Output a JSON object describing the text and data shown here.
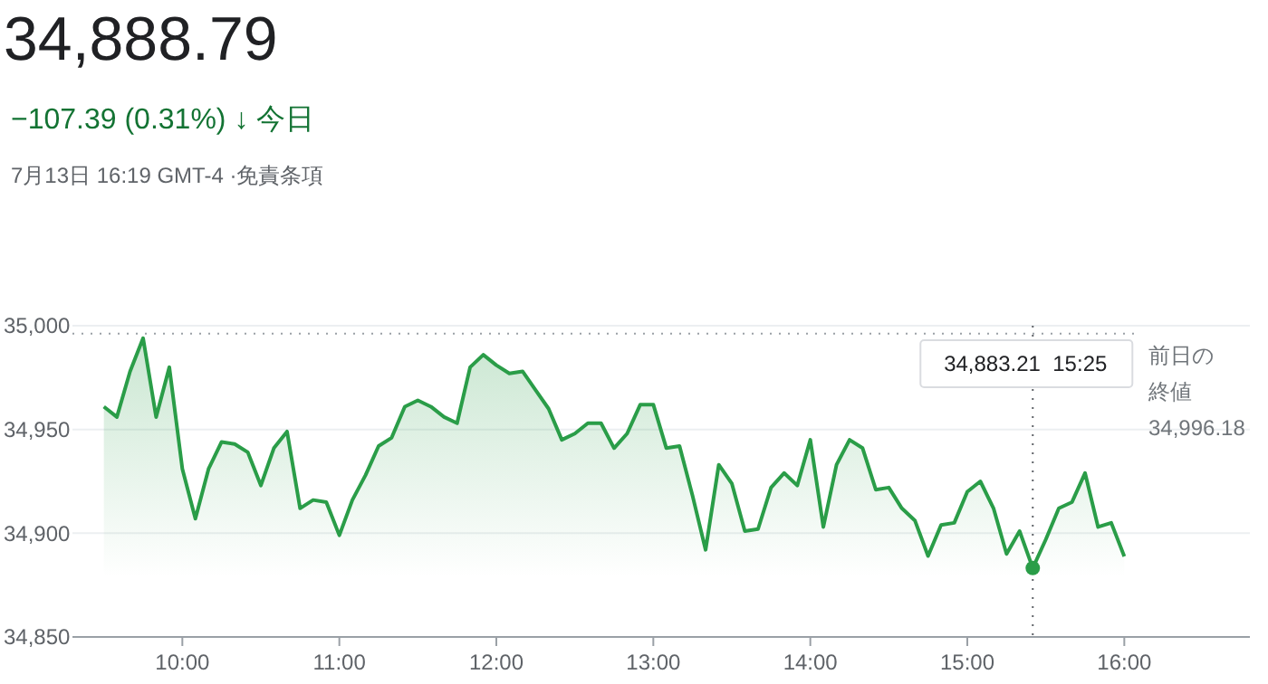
{
  "chart_data": {
    "type": "area",
    "title": "34,888.79",
    "subtitle": "−107.39 (0.31%) ↓ 今日",
    "annotations": [
      "7月13日 16:19 GMT-4 ·免責条項",
      "34,883.21  15:25",
      "34,996.18"
    ],
    "x": [
      9.5,
      9.583,
      9.667,
      9.75,
      9.833,
      9.917,
      10,
      10.083,
      10.167,
      10.25,
      10.333,
      10.417,
      10.5,
      10.583,
      10.667,
      10.75,
      10.833,
      10.917,
      11,
      11.083,
      11.167,
      11.25,
      11.333,
      11.417,
      11.5,
      11.583,
      11.667,
      11.75,
      11.833,
      11.917,
      12,
      12.083,
      12.167,
      12.25,
      12.333,
      12.417,
      12.5,
      12.583,
      12.667,
      12.75,
      12.833,
      12.917,
      13,
      13.083,
      13.167,
      13.25,
      13.333,
      13.417,
      13.5,
      13.583,
      13.667,
      13.75,
      13.833,
      13.917,
      14,
      14.083,
      14.167,
      14.25,
      14.333,
      14.417,
      14.5,
      14.583,
      14.667,
      14.75,
      14.833,
      14.917,
      15,
      15.083,
      15.167,
      15.25,
      15.333,
      15.417,
      15.5,
      15.583,
      15.667,
      15.75,
      15.833,
      15.917,
      16
    ],
    "series": [
      {
        "color": "#2a9d48",
        "values": [
          34961,
          34956,
          34978,
          34994,
          34956,
          34980,
          34931,
          34907,
          34931,
          34944,
          34943,
          34939,
          34923,
          34941,
          34949,
          34912,
          34916,
          34915,
          34899,
          34916,
          34928,
          34942,
          34946,
          34961,
          34964,
          34961,
          34956,
          34953,
          34980,
          34986,
          34981,
          34977,
          34978,
          34969,
          34960,
          34945,
          34948,
          34953,
          34953,
          34941,
          34948,
          34962,
          34962,
          34941,
          34942,
          34918,
          34892,
          34933,
          34924,
          34901,
          34902,
          34922,
          34929,
          34923,
          34945,
          34903,
          34933,
          34945,
          34941,
          34921,
          34922,
          34912,
          34906,
          34889,
          34904,
          34905,
          34920,
          34925,
          34912,
          34890,
          34901,
          34883.21,
          34897,
          34912,
          34915,
          34929,
          34903,
          34905,
          34888.79
        ]
      }
    ],
    "xlim": [
      9.3,
      16.8
    ],
    "xticks": [
      {
        "value": 10,
        "label": "10:00"
      },
      {
        "value": 11,
        "label": "11:00"
      },
      {
        "value": 12,
        "label": "12:00"
      },
      {
        "value": 13,
        "label": "13:00"
      },
      {
        "value": 14,
        "label": "14:00"
      },
      {
        "value": 15,
        "label": "15:00"
      },
      {
        "value": 16,
        "label": "16:00"
      }
    ],
    "ylim": [
      34850,
      35000
    ],
    "yticks": [
      {
        "value": 34850,
        "label": "34,850"
      },
      {
        "value": 34900,
        "label": "34,900"
      },
      {
        "value": 34950,
        "label": "34,950"
      },
      {
        "value": 35000,
        "label": "35,000"
      }
    ],
    "ref_lines": [
      {
        "axis": "y",
        "value": 34996.18,
        "label": "前日の終値",
        "line_style": "dotted"
      },
      {
        "axis": "x",
        "value": 15.417,
        "label": null,
        "line_style": "dotted"
      }
    ],
    "grid": "y",
    "legend": false,
    "marker": "none",
    "line_style": "solid"
  }
}
